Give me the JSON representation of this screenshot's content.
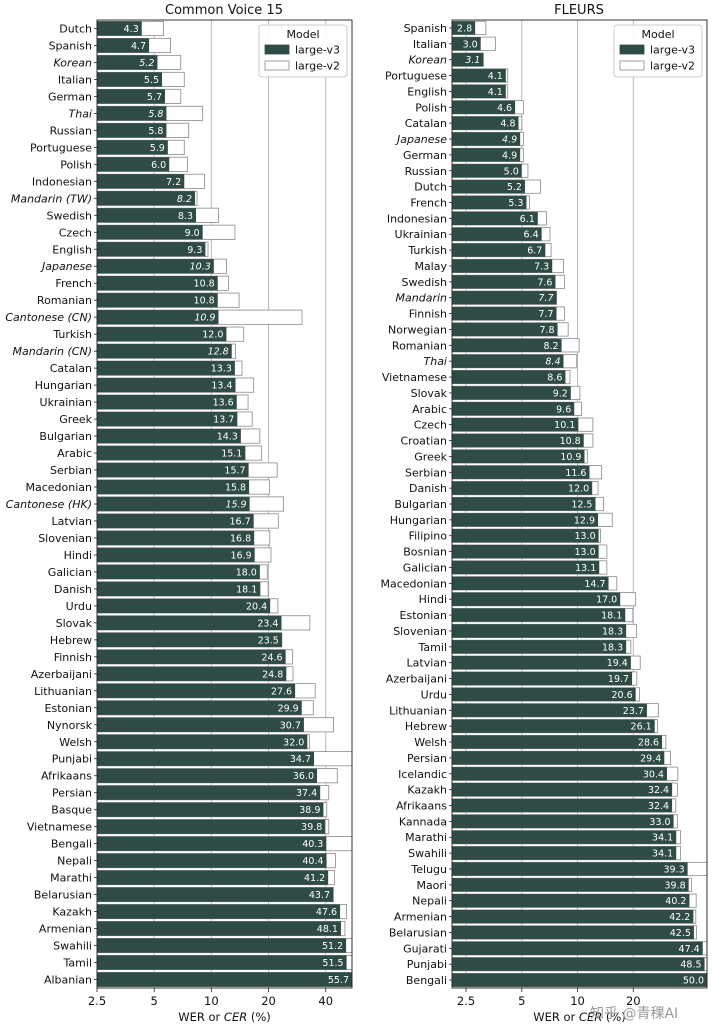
{
  "chart_data": [
    {
      "type": "bar",
      "orientation": "horizontal",
      "title": "Common Voice 15",
      "xlabel_prefix": "WER or ",
      "xlabel_italic": "CER",
      "xlabel_suffix": " (%)",
      "xscale": "log",
      "xlim": [
        2.5,
        55
      ],
      "xticks": [
        2.5,
        5,
        10,
        20,
        40
      ],
      "xtick_labels": [
        "2.5",
        "5",
        "10",
        "20",
        "40"
      ],
      "grid": "vertical",
      "legend": {
        "title": "Model",
        "placement": "top-right",
        "entries": [
          "large-v3",
          "large-v2"
        ]
      },
      "series": [
        {
          "name": "large-v3",
          "color": "#2f4b45"
        },
        {
          "name": "large-v2",
          "color": "#ffffff"
        }
      ],
      "categories": [
        "Dutch",
        "Spanish",
        "Korean",
        "Italian",
        "German",
        "Thai",
        "Russian",
        "Portuguese",
        "Polish",
        "Indonesian",
        "Mandarin (TW)",
        "Swedish",
        "Czech",
        "English",
        "Japanese",
        "French",
        "Romanian",
        "Cantonese (CN)",
        "Turkish",
        "Mandarin (CN)",
        "Catalan",
        "Hungarian",
        "Ukrainian",
        "Greek",
        "Bulgarian",
        "Arabic",
        "Serbian",
        "Macedonian",
        "Cantonese (HK)",
        "Latvian",
        "Slovenian",
        "Hindi",
        "Galician",
        "Danish",
        "Urdu",
        "Slovak",
        "Hebrew",
        "Finnish",
        "Azerbaijani",
        "Lithuanian",
        "Estonian",
        "Nynorsk",
        "Welsh",
        "Punjabi",
        "Afrikaans",
        "Persian",
        "Basque",
        "Vietnamese",
        "Bengali",
        "Nepali",
        "Marathi",
        "Belarusian",
        "Kazakh",
        "Armenian",
        "Swahili",
        "Tamil",
        "Albanian"
      ],
      "italic": [
        false,
        false,
        true,
        false,
        false,
        true,
        false,
        false,
        false,
        false,
        true,
        false,
        false,
        false,
        true,
        false,
        false,
        true,
        false,
        true,
        false,
        false,
        false,
        false,
        false,
        false,
        false,
        false,
        true,
        false,
        false,
        false,
        false,
        false,
        false,
        false,
        false,
        false,
        false,
        false,
        false,
        false,
        false,
        false,
        false,
        false,
        false,
        false,
        false,
        false,
        false,
        false,
        false,
        false,
        false,
        false,
        false
      ],
      "v3": [
        4.3,
        4.7,
        5.2,
        5.5,
        5.7,
        5.8,
        5.8,
        5.9,
        6.0,
        7.2,
        8.2,
        8.3,
        9.0,
        9.3,
        10.3,
        10.8,
        10.8,
        10.9,
        12.0,
        12.8,
        13.3,
        13.4,
        13.6,
        13.7,
        14.3,
        15.1,
        15.7,
        15.8,
        15.9,
        16.7,
        16.8,
        16.9,
        18.0,
        18.1,
        20.4,
        23.4,
        23.5,
        24.6,
        24.8,
        27.6,
        29.9,
        30.7,
        32.0,
        34.7,
        36.0,
        37.4,
        38.9,
        39.8,
        40.3,
        40.4,
        41.2,
        43.7,
        47.6,
        48.1,
        51.2,
        51.5,
        55.7
      ],
      "v2": [
        5.6,
        6.1,
        6.9,
        7.2,
        6.9,
        9.0,
        7.6,
        7.2,
        7.5,
        9.2,
        8.4,
        10.9,
        13.3,
        9.6,
        12.0,
        12.3,
        14.0,
        30.0,
        14.8,
        13.4,
        14.5,
        16.7,
        15.6,
        16.4,
        18.0,
        18.4,
        22.2,
        20.2,
        24.0,
        22.5,
        20.3,
        20.6,
        19.7,
        19.9,
        22.4,
        33.0,
        23.5,
        26.8,
        26.9,
        35.2,
        34.4,
        44.0,
        32.8,
        60.0,
        46.0,
        41.5,
        40.5,
        41.5,
        60.0,
        45.0,
        44.5,
        44.0,
        51.5,
        50.5,
        56.0,
        59.0,
        60.0
      ],
      "value_labels": [
        "4.3",
        "4.7",
        "5.2",
        "5.5",
        "5.7",
        "5.8",
        "5.8",
        "5.9",
        "6.0",
        "7.2",
        "8.2",
        "8.3",
        "9.0",
        "9.3",
        "10.3",
        "10.8",
        "10.8",
        "10.9",
        "12.0",
        "12.8",
        "13.3",
        "13.4",
        "13.6",
        "13.7",
        "14.3",
        "15.1",
        "15.7",
        "15.8",
        "15.9",
        "16.7",
        "16.8",
        "16.9",
        "18.0",
        "18.1",
        "20.4",
        "23.4",
        "23.5",
        "24.6",
        "24.8",
        "27.6",
        "29.9",
        "30.7",
        "32.0",
        "34.7",
        "36.0",
        "37.4",
        "38.9",
        "39.8",
        "40.3",
        "40.4",
        "41.2",
        "43.7",
        "47.6",
        "48.1",
        "51.2",
        "51.5",
        "55.7"
      ]
    },
    {
      "type": "bar",
      "orientation": "horizontal",
      "title": "FLEURS",
      "xlabel_prefix": "WER or ",
      "xlabel_italic": "CER",
      "xlabel_suffix": " (%)",
      "xscale": "log",
      "xlim": [
        2.1,
        50
      ],
      "xticks": [
        2.5,
        5,
        10,
        20
      ],
      "xtick_labels": [
        "2.5",
        "5",
        "10",
        "20"
      ],
      "grid": "vertical",
      "legend": {
        "title": "Model",
        "placement": "top-right",
        "entries": [
          "large-v3",
          "large-v2"
        ]
      },
      "series": [
        {
          "name": "large-v3",
          "color": "#2f4b45"
        },
        {
          "name": "large-v2",
          "color": "#ffffff"
        }
      ],
      "categories": [
        "Spanish",
        "Italian",
        "Korean",
        "Portuguese",
        "English",
        "Polish",
        "Catalan",
        "Japanese",
        "German",
        "Russian",
        "Dutch",
        "French",
        "Indonesian",
        "Ukrainian",
        "Turkish",
        "Malay",
        "Swedish",
        "Mandarin",
        "Finnish",
        "Norwegian",
        "Romanian",
        "Thai",
        "Vietnamese",
        "Slovak",
        "Arabic",
        "Czech",
        "Croatian",
        "Greek",
        "Serbian",
        "Danish",
        "Bulgarian",
        "Hungarian",
        "Filipino",
        "Bosnian",
        "Galician",
        "Macedonian",
        "Hindi",
        "Estonian",
        "Slovenian",
        "Tamil",
        "Latvian",
        "Azerbaijani",
        "Urdu",
        "Lithuanian",
        "Hebrew",
        "Welsh",
        "Persian",
        "Icelandic",
        "Kazakh",
        "Afrikaans",
        "Kannada",
        "Marathi",
        "Swahili",
        "Telugu",
        "Maori",
        "Nepali",
        "Armenian",
        "Belarusian",
        "Gujarati",
        "Punjabi",
        "Bengali"
      ],
      "italic": [
        false,
        false,
        true,
        false,
        false,
        false,
        false,
        true,
        false,
        false,
        false,
        false,
        false,
        false,
        false,
        false,
        false,
        true,
        false,
        false,
        false,
        true,
        false,
        false,
        false,
        false,
        false,
        false,
        false,
        false,
        false,
        false,
        false,
        false,
        false,
        false,
        false,
        false,
        false,
        false,
        false,
        false,
        false,
        false,
        false,
        false,
        false,
        false,
        false,
        false,
        false,
        false,
        false,
        false,
        false,
        false,
        false,
        false,
        false,
        false,
        false
      ],
      "v3": [
        2.8,
        3.0,
        3.1,
        4.1,
        4.1,
        4.6,
        4.8,
        4.9,
        4.9,
        5.0,
        5.2,
        5.3,
        6.1,
        6.4,
        6.7,
        7.3,
        7.6,
        7.7,
        7.7,
        7.8,
        8.2,
        8.4,
        8.6,
        9.2,
        9.6,
        10.1,
        10.8,
        10.9,
        11.6,
        12.0,
        12.5,
        12.9,
        13.0,
        13.0,
        13.1,
        14.7,
        17.0,
        18.1,
        18.3,
        18.3,
        19.4,
        19.7,
        20.6,
        23.7,
        26.1,
        28.6,
        29.4,
        30.4,
        32.4,
        32.4,
        33.0,
        34.1,
        34.1,
        39.3,
        39.8,
        40.2,
        42.2,
        42.5,
        47.4,
        48.5,
        50.0
      ],
      "v2": [
        3.2,
        3.6,
        3.1,
        4.2,
        4.2,
        5.1,
        5.0,
        5.1,
        5.1,
        5.4,
        6.3,
        5.5,
        6.8,
        7.1,
        7.2,
        8.4,
        8.5,
        7.7,
        8.5,
        8.9,
        10.2,
        9.9,
        9.1,
        10.3,
        10.5,
        12.1,
        12.1,
        11.3,
        13.5,
        12.9,
        13.8,
        15.4,
        13.3,
        14.4,
        14.4,
        16.3,
        20.6,
        19.9,
        20.8,
        19.4,
        21.8,
        20.9,
        21.6,
        27.3,
        27.0,
        30.0,
        31.8,
        34.8,
        34.6,
        33.9,
        34.6,
        36.0,
        36.0,
        55.0,
        41.2,
        43.7,
        43.5,
        43.9,
        55.0,
        55.0,
        55.0
      ],
      "value_labels": [
        "2.8",
        "3.0",
        "3.1",
        "4.1",
        "4.1",
        "4.6",
        "4.8",
        "4.9",
        "4.9",
        "5.0",
        "5.2",
        "5.3",
        "6.1",
        "6.4",
        "6.7",
        "7.3",
        "7.6",
        "7.7",
        "7.7",
        "7.8",
        "8.2",
        "8.4",
        "8.6",
        "9.2",
        "9.6",
        "10.1",
        "10.8",
        "10.9",
        "11.6",
        "12.0",
        "12.5",
        "12.9",
        "13.0",
        "13.0",
        "13.1",
        "14.7",
        "17.0",
        "18.1",
        "18.3",
        "18.3",
        "19.4",
        "19.7",
        "20.6",
        "23.7",
        "26.1",
        "28.6",
        "29.4",
        "30.4",
        "32.4",
        "32.4",
        "33.0",
        "34.1",
        "34.1",
        "39.3",
        "39.8",
        "40.2",
        "42.2",
        "42.5",
        "47.4",
        "48.5",
        "50.0"
      ]
    }
  ],
  "watermark": "知乎 @青稞AI"
}
